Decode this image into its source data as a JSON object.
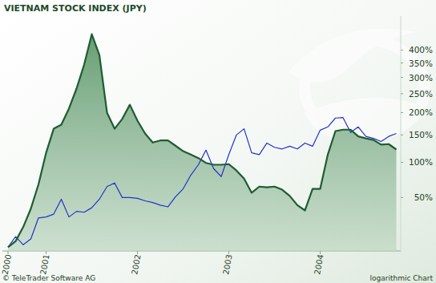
{
  "chart_data": {
    "type": "line",
    "title": "VIETNAM STOCK INDEX (JPY)",
    "annotations": [
      "© TeleTrader Software AG",
      "logarithmic Chart"
    ],
    "categories": [
      "2000",
      null,
      null,
      null,
      null,
      "2001",
      null,
      null,
      null,
      null,
      null,
      null,
      null,
      null,
      null,
      null,
      null,
      "2002",
      null,
      null,
      null,
      null,
      null,
      null,
      null,
      null,
      null,
      null,
      null,
      "2003",
      null,
      null,
      null,
      null,
      null,
      null,
      null,
      null,
      null,
      null,
      null,
      "2004",
      null,
      null,
      null,
      null,
      null,
      null,
      null,
      null,
      null,
      null
    ],
    "series": [
      {
        "type": "area",
        "color": "#1e5c32",
        "values": [
          0,
          5,
          18,
          37,
          67,
          116,
          163,
          172,
          210,
          265,
          344,
          469,
          380,
          200,
          163,
          185,
          220,
          181,
          153,
          135,
          139,
          139,
          129,
          119,
          113,
          107,
          99,
          96,
          96,
          97,
          87,
          75,
          56,
          64,
          63,
          64,
          60,
          52,
          41,
          35,
          61,
          61,
          113,
          158,
          161,
          161,
          147,
          143,
          140,
          131,
          132,
          122
        ]
      },
      {
        "type": "line",
        "color": "#2233cc",
        "values": [
          0,
          9,
          2,
          7,
          27,
          28,
          31,
          48,
          28,
          34,
          33,
          38,
          48,
          64,
          69,
          50,
          50,
          49,
          46,
          44,
          41,
          39,
          51,
          61,
          80,
          96,
          121,
          90,
          78,
          113,
          150,
          163,
          116,
          113,
          134,
          126,
          123,
          128,
          123,
          134,
          128,
          160,
          167,
          187,
          188,
          155,
          167,
          147,
          143,
          137,
          147,
          153
        ]
      }
    ],
    "log": "y",
    "grid": false,
    "ylim": [
      -3,
      560
    ],
    "yticks": [
      {
        "value": 50,
        "label": "50%"
      },
      {
        "value": 100,
        "label": "100%"
      },
      {
        "value": 150,
        "label": "150%"
      },
      {
        "value": 200,
        "label": "200%"
      },
      {
        "value": 250,
        "label": "250%"
      },
      {
        "value": 300,
        "label": "300%"
      },
      {
        "value": 350,
        "label": "350%"
      },
      {
        "value": 400,
        "label": "400%"
      }
    ]
  }
}
